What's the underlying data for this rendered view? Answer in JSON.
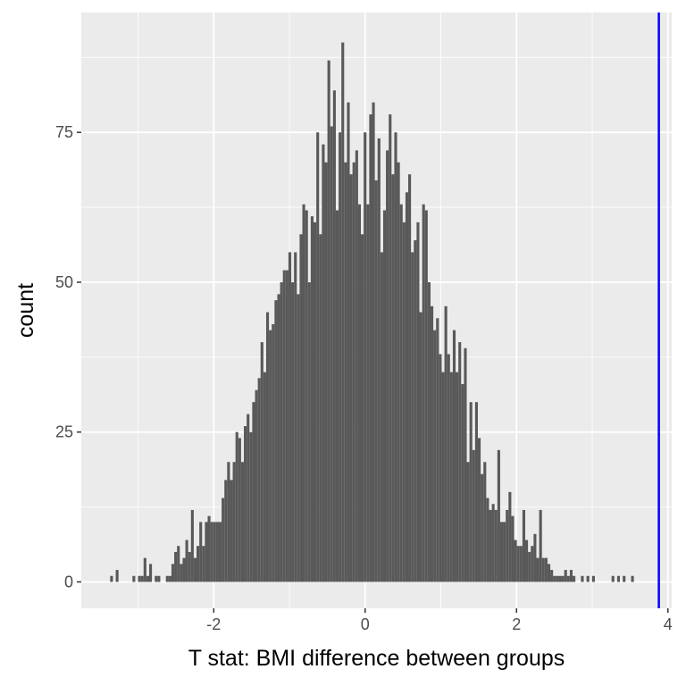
{
  "chart_data": {
    "type": "bar",
    "subtype": "histogram",
    "title": "",
    "xlabel": "T stat: BMI difference between groups",
    "ylabel": "count",
    "xlim": [
      -3.75,
      4.05
    ],
    "ylim": [
      -4.4,
      95
    ],
    "x_ticks": [
      -2,
      0,
      2,
      4
    ],
    "x_tick_labels": [
      "-2",
      "0",
      "2",
      "4"
    ],
    "y_ticks": [
      0,
      25,
      50,
      75
    ],
    "y_tick_labels": [
      "0",
      "25",
      "50",
      "75"
    ],
    "grid": true,
    "legend": "none",
    "bin_width": 0.0368,
    "first_bin_center": -3.35,
    "counts": [
      1,
      0,
      2,
      0,
      0,
      0,
      0,
      0,
      1,
      0,
      1,
      1,
      4,
      1,
      3,
      0,
      1,
      1,
      0,
      0,
      1,
      1,
      3,
      5,
      6,
      3,
      4,
      7,
      5,
      12,
      4,
      6,
      10,
      6,
      10,
      11,
      10,
      10,
      10,
      10,
      14,
      17,
      20,
      17,
      20,
      25,
      24,
      20,
      26,
      28,
      25,
      30,
      32,
      34,
      40,
      35,
      45,
      42,
      43,
      47,
      48,
      50,
      52,
      52,
      55,
      50,
      55,
      48,
      58,
      63,
      62,
      50,
      61,
      60,
      75,
      58,
      73,
      70,
      87,
      76,
      82,
      62,
      75,
      90,
      70,
      80,
      68,
      70,
      72,
      63,
      58,
      75,
      63,
      78,
      80,
      67,
      74,
      55,
      62,
      72,
      78,
      68,
      75,
      70,
      63,
      60,
      65,
      68,
      55,
      57,
      60,
      45,
      63,
      62,
      50,
      46,
      42,
      44,
      38,
      35,
      46,
      38,
      35,
      42,
      35,
      40,
      33,
      39,
      20,
      30,
      22,
      30,
      24,
      18,
      20,
      14,
      12,
      13,
      12,
      22,
      10,
      10,
      12,
      15,
      11,
      7,
      6,
      6,
      12,
      7,
      5,
      6,
      8,
      4,
      12,
      4,
      4,
      3,
      2,
      1,
      1,
      1,
      1,
      2,
      1,
      2,
      1,
      0,
      0,
      1,
      0,
      1,
      0,
      1,
      0,
      0,
      0,
      0,
      0,
      0,
      1,
      0,
      1,
      0,
      1,
      0,
      0,
      1,
      0,
      0,
      0,
      0,
      0
    ],
    "observed_value": 3.88,
    "observed_line_color": "#0000ff",
    "bar_color": "#595959",
    "panel_background": "#ebebeb",
    "grid_color": "#ffffff"
  }
}
